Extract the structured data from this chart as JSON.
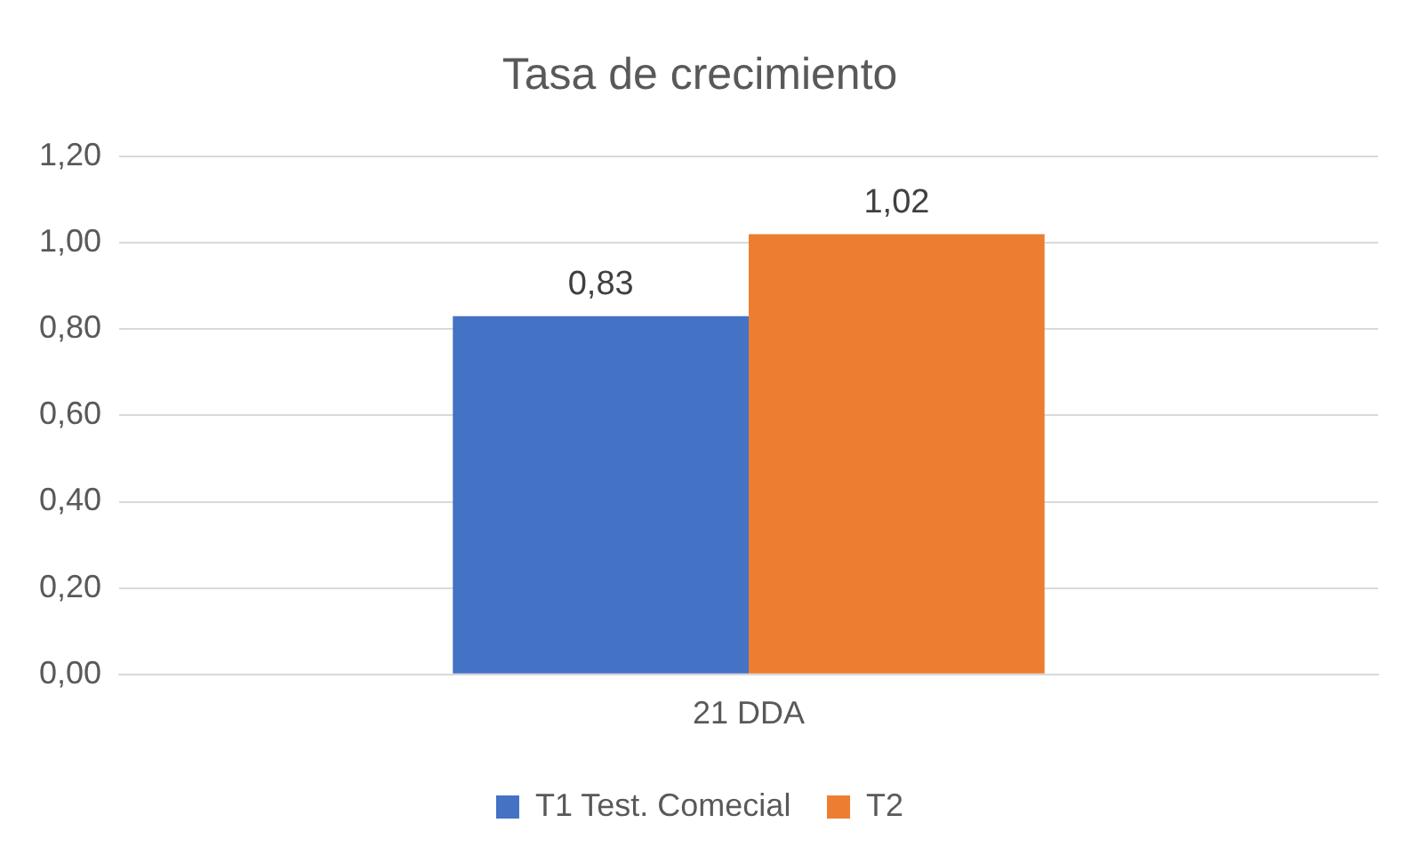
{
  "chart_data": {
    "type": "bar",
    "title": "Tasa de crecimiento",
    "categories": [
      "21 DDA"
    ],
    "series": [
      {
        "name": "T1 Test. Comecial",
        "color": "#4472c4",
        "values": [
          0.83
        ],
        "value_labels": [
          "0,83"
        ]
      },
      {
        "name": "T2",
        "color": "#ed7d31",
        "values": [
          1.02
        ],
        "value_labels": [
          "1,02"
        ]
      }
    ],
    "ylim": [
      0,
      1.2
    ],
    "yticks": [
      {
        "value": 0,
        "label": "0,00"
      },
      {
        "value": 0.2,
        "label": "0,20"
      },
      {
        "value": 0.4,
        "label": "0,40"
      },
      {
        "value": 0.6,
        "label": "0,60"
      },
      {
        "value": 0.8,
        "label": "0,80"
      },
      {
        "value": 1,
        "label": "1,00"
      },
      {
        "value": 1.2,
        "label": "1,20"
      }
    ],
    "grid": "y",
    "legend": "bottom"
  }
}
